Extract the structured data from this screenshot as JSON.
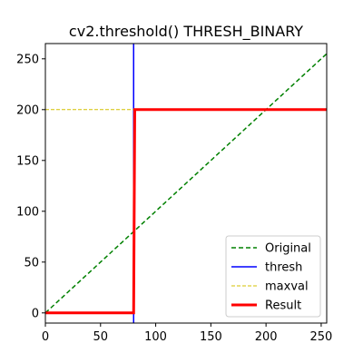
{
  "chart_data": {
    "type": "line",
    "title": "cv2.threshold() THRESH_BINARY",
    "xlabel": "",
    "ylabel": "",
    "xlim": [
      0,
      255
    ],
    "ylim": [
      -10,
      265
    ],
    "xticks": [
      0,
      50,
      100,
      150,
      200,
      250
    ],
    "yticks": [
      0,
      50,
      100,
      150,
      200,
      250
    ],
    "grid": false,
    "legend_position": "lower-right",
    "series": [
      {
        "name": "Original",
        "color": "#008000",
        "style": "dashed",
        "x": [
          0,
          255
        ],
        "y": [
          0,
          255
        ]
      },
      {
        "name": "thresh",
        "color": "#0000ff",
        "style": "solid",
        "x": [
          80,
          80
        ],
        "y": [
          -10,
          265
        ]
      },
      {
        "name": "maxval",
        "color": "#d4c000",
        "style": "dashed-thin",
        "x": [
          0,
          80
        ],
        "y": [
          200,
          200
        ]
      },
      {
        "name": "Result",
        "color": "#ff0000",
        "style": "solid-thick",
        "x": [
          0,
          80,
          81,
          255
        ],
        "y": [
          0,
          0,
          200,
          200
        ]
      }
    ]
  }
}
